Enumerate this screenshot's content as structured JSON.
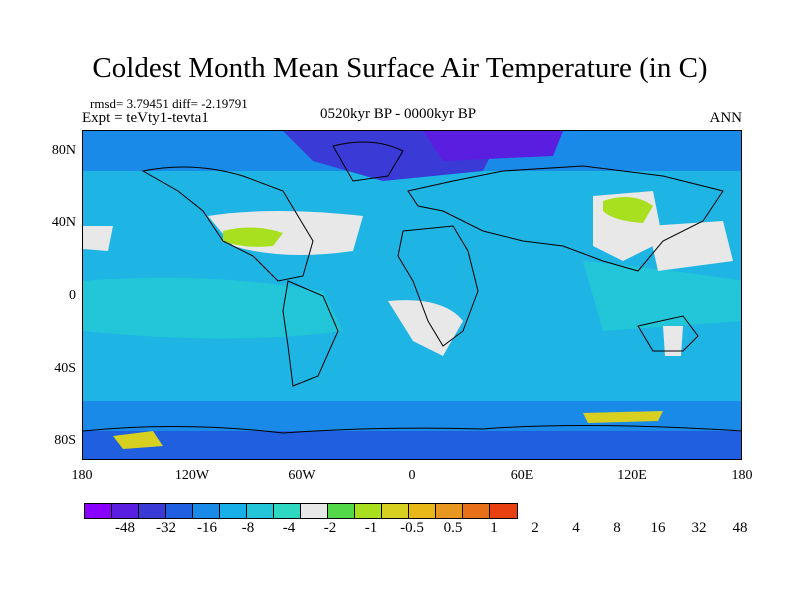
{
  "title": "Coldest Month Mean Surface Air Temperature (in C)",
  "stats": "rmsd= 3.79451 diff= -2.19791",
  "experiment": "Expt = teVty1-tevta1",
  "period": "0520kyr BP - 0000kyr BP",
  "season": "ANN",
  "lat_labels": [
    "80N",
    "40N",
    "0",
    "40S",
    "80S"
  ],
  "lon_labels": [
    "180",
    "120W",
    "60W",
    "0",
    "60E",
    "120E",
    "180"
  ],
  "colorbar": {
    "colors": [
      "#8a00ff",
      "#5a1ee0",
      "#3a3ad6",
      "#1f5fe0",
      "#1a8ae8",
      "#18aee8",
      "#22c6d8",
      "#2fd8c0",
      "#e8e8e8",
      "#53d84a",
      "#a8e020",
      "#d8d020",
      "#e8b818",
      "#e89820",
      "#e87018",
      "#e84010"
    ],
    "labels": [
      "-48",
      "-32",
      "-16",
      "-8",
      "-4",
      "-2",
      "-1",
      "-0.5",
      "0.5",
      "1",
      "2",
      "4",
      "8",
      "16",
      "32",
      "48"
    ]
  }
}
